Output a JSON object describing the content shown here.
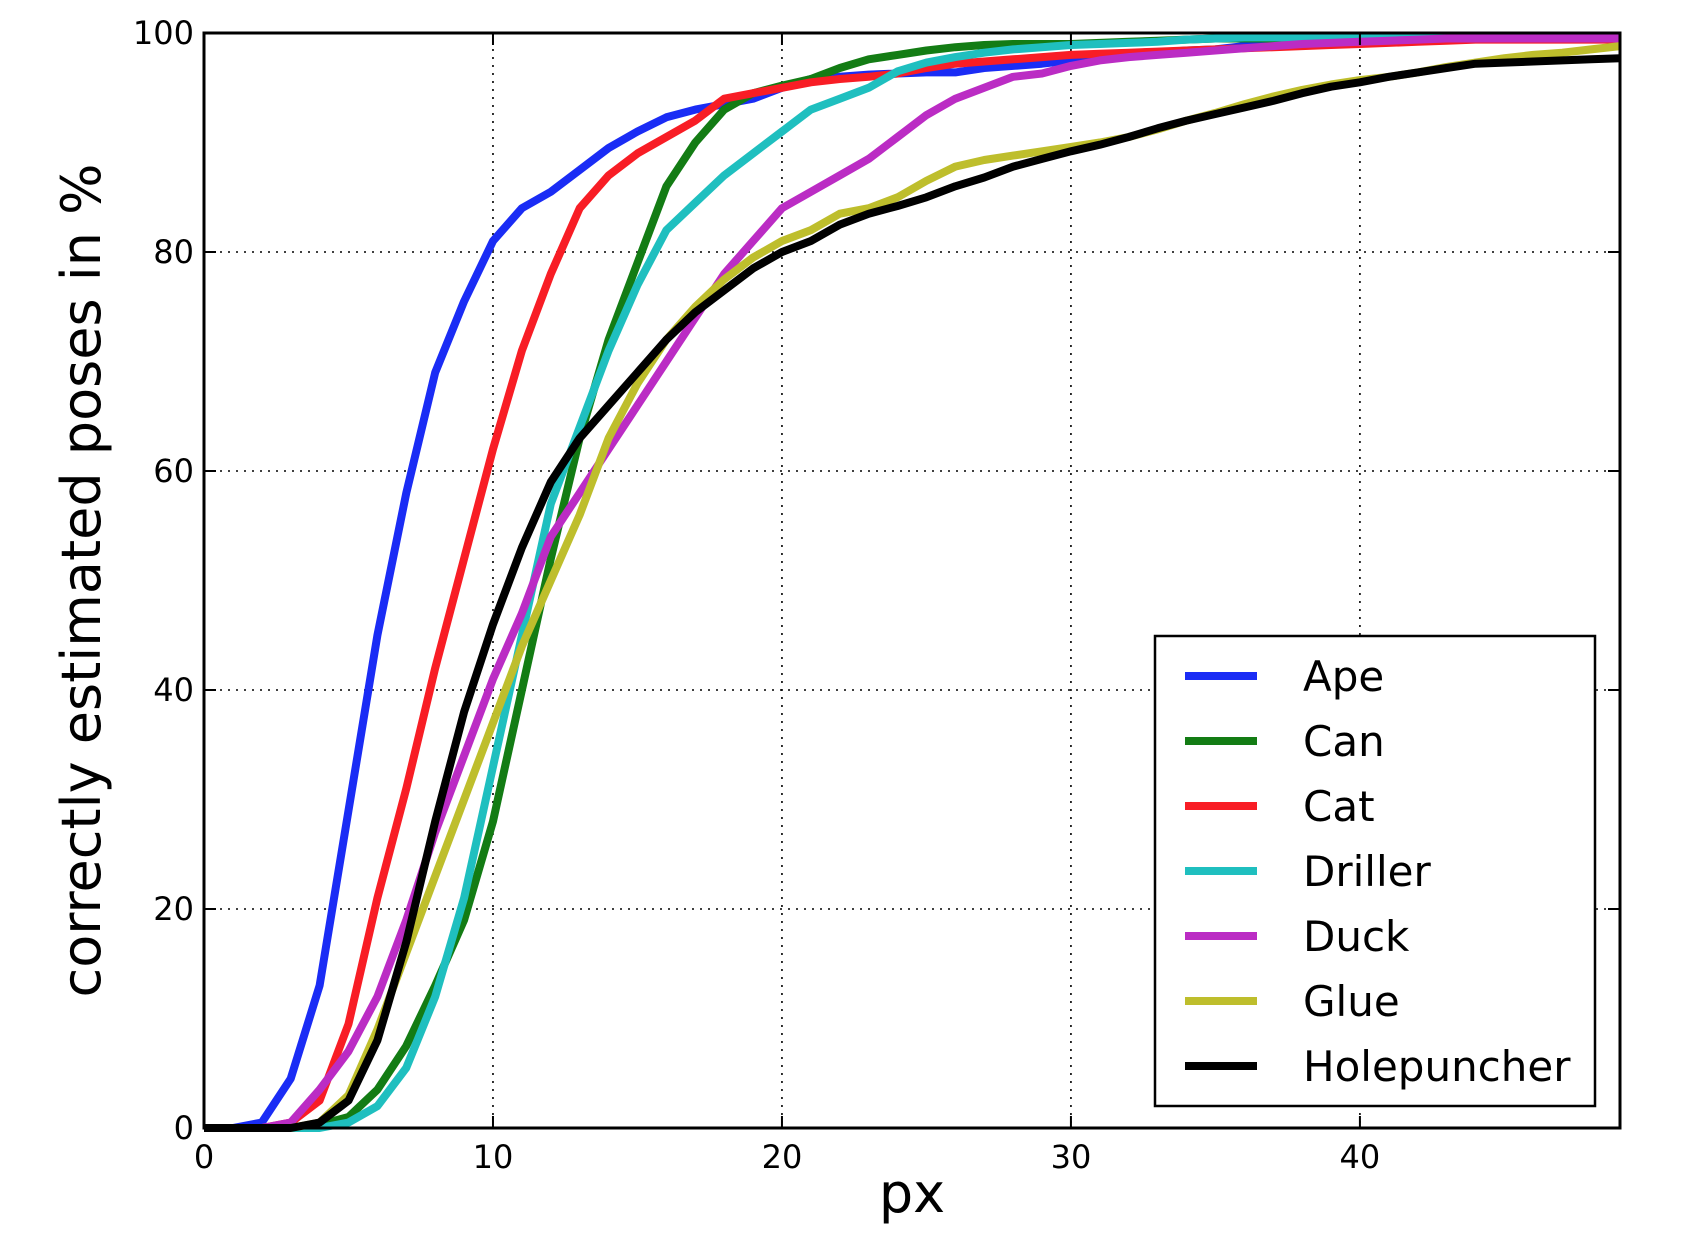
{
  "chart_data": {
    "type": "line",
    "title": "",
    "xlabel": "px",
    "ylabel": "correctly estimated poses in %",
    "xlim": [
      0,
      49
    ],
    "ylim": [
      0,
      100
    ],
    "x_ticks": [
      0,
      10,
      20,
      30,
      40
    ],
    "y_ticks": [
      0,
      20,
      40,
      60,
      80,
      100
    ],
    "grid": true,
    "legend_position": "bottom-right",
    "x": [
      0,
      1,
      2,
      3,
      4,
      5,
      6,
      7,
      8,
      9,
      10,
      11,
      12,
      13,
      14,
      15,
      16,
      17,
      18,
      19,
      20,
      21,
      22,
      23,
      24,
      25,
      26,
      27,
      28,
      29,
      30,
      31,
      32,
      33,
      34,
      35,
      36,
      37,
      38,
      39,
      40,
      41,
      42,
      43,
      44,
      45,
      46,
      47,
      48,
      49
    ],
    "series": [
      {
        "name": "Ape",
        "color": "#1a2cf5",
        "values": [
          0,
          0,
          0.5,
          4.5,
          13,
          29,
          45,
          58,
          69,
          75.5,
          81,
          84,
          85.5,
          87.5,
          89.5,
          91,
          92.3,
          93,
          93.5,
          94,
          95,
          95.8,
          96,
          96.2,
          96.3,
          96.4,
          96.4,
          96.8,
          97,
          97.2,
          97.5,
          97.8,
          98,
          98.2,
          98.4,
          98.5,
          98.8,
          98.8,
          98.9,
          99,
          99.2,
          99.3,
          99.4,
          99.4,
          99.5,
          99.5,
          99.5,
          99.5,
          99.5,
          99.5
        ]
      },
      {
        "name": "Can",
        "color": "#137c14",
        "values": [
          0,
          0,
          0,
          0,
          0.3,
          1,
          3.5,
          7.5,
          13,
          19,
          28,
          40,
          52,
          63,
          72,
          79,
          86,
          90,
          93,
          94.5,
          95.2,
          95.8,
          96.8,
          97.6,
          98,
          98.4,
          98.7,
          98.9,
          99,
          99,
          99,
          99.1,
          99.2,
          99.3,
          99.4,
          99.5,
          99.5,
          99.5,
          99.5,
          99.5,
          99.5,
          99.5,
          99.5,
          99.5,
          99.5,
          99.5,
          99.5,
          99.5,
          99.5,
          99.5
        ]
      },
      {
        "name": "Cat",
        "color": "#f81d25",
        "values": [
          0,
          0,
          0,
          0.5,
          2.5,
          9.5,
          21,
          31,
          42,
          52,
          62,
          71,
          78,
          84,
          87,
          89,
          90.5,
          92,
          94,
          94.5,
          95,
          95.5,
          95.8,
          96,
          96.3,
          96.8,
          97.2,
          97.4,
          97.6,
          97.8,
          98,
          98.1,
          98.2,
          98.3,
          98.4,
          98.5,
          98.6,
          98.7,
          98.8,
          98.9,
          99,
          99.1,
          99.2,
          99.3,
          99.4,
          99.4,
          99.4,
          99.4,
          99.4,
          99.4
        ]
      },
      {
        "name": "Driller",
        "color": "#1fbfbf",
        "values": [
          0,
          0,
          0,
          0,
          0,
          0.5,
          2,
          5.5,
          12,
          21,
          33,
          45,
          57,
          64,
          71,
          77,
          82,
          84.5,
          87,
          89,
          91,
          93,
          94,
          95,
          96.5,
          97.3,
          97.8,
          98.2,
          98.5,
          98.7,
          98.9,
          99,
          99.1,
          99.2,
          99.4,
          99.5,
          99.6,
          99.6,
          99.6,
          99.6,
          99.6,
          99.6,
          99.6,
          99.6,
          99.6,
          99.6,
          99.6,
          99.6,
          99.6,
          99.6
        ]
      },
      {
        "name": "Duck",
        "color": "#bb2cc4",
        "values": [
          0,
          0,
          0,
          0.5,
          3.5,
          7,
          12,
          19,
          27,
          34,
          41,
          47,
          54,
          58,
          62,
          66,
          70,
          74,
          78,
          81,
          84,
          85.5,
          87,
          88.5,
          90.5,
          92.5,
          94,
          95,
          96,
          96.3,
          97,
          97.5,
          97.8,
          98,
          98.2,
          98.4,
          98.6,
          98.8,
          99,
          99.1,
          99.2,
          99.3,
          99.4,
          99.5,
          99.5,
          99.5,
          99.5,
          99.5,
          99.5,
          99.5
        ]
      },
      {
        "name": "Glue",
        "color": "#bebe2c",
        "values": [
          0,
          0,
          0,
          0,
          0.5,
          3,
          9,
          16,
          23,
          30,
          37,
          44,
          50,
          56,
          63,
          68,
          72,
          75,
          77.5,
          79.5,
          81,
          82,
          83.5,
          84,
          85,
          86.5,
          87.8,
          88.4,
          88.8,
          89.2,
          89.6,
          90,
          90.5,
          91.2,
          92,
          92.7,
          93.5,
          94.2,
          94.8,
          95.3,
          95.7,
          96,
          96.4,
          96.9,
          97.3,
          97.7,
          98,
          98.2,
          98.5,
          98.8
        ]
      },
      {
        "name": "Holepuncher",
        "color": "#000000",
        "values": [
          0,
          0,
          0,
          0,
          0.5,
          2.5,
          8,
          17,
          28,
          38,
          46,
          53,
          59,
          63,
          66,
          69,
          72,
          74.5,
          76.5,
          78.5,
          80,
          81,
          82.5,
          83.5,
          84.2,
          85,
          86,
          86.8,
          87.8,
          88.5,
          89.2,
          89.8,
          90.5,
          91.3,
          92,
          92.6,
          93.2,
          93.8,
          94.5,
          95.1,
          95.5,
          96,
          96.4,
          96.8,
          97.2,
          97.3,
          97.4,
          97.5,
          97.6,
          97.7
        ]
      }
    ]
  }
}
